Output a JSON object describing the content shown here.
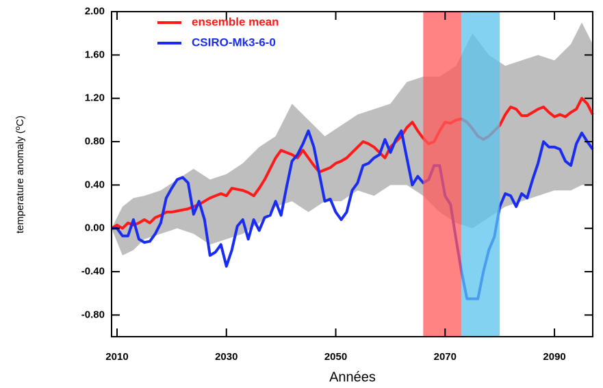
{
  "chart_data": {
    "type": "line",
    "xlabel": "Années",
    "ylabel": "temperature anomaly (ºC)",
    "xlim": [
      2009,
      2097
    ],
    "ylim": [
      -1.0,
      2.0
    ],
    "xticks": [
      2010,
      2030,
      2050,
      2070,
      2090
    ],
    "yticks": [
      {
        "value": 2.0,
        "label": "2.00"
      },
      {
        "value": 1.6,
        "label": "1.60"
      },
      {
        "value": 1.2,
        "label": "1.20"
      },
      {
        "value": 0.8,
        "label": "0.80"
      },
      {
        "value": 0.4,
        "label": "0.40"
      },
      {
        "value": 0,
        "label": "0.00"
      },
      {
        "value": -0.4,
        "label": "-0.40"
      },
      {
        "value": -0.8,
        "label": "-0.80"
      }
    ],
    "legend": "upper left",
    "band": {
      "color": "#bebebe",
      "x": [
        2009,
        2011,
        2013,
        2015,
        2018,
        2021,
        2024,
        2027,
        2030,
        2033,
        2036,
        2039,
        2042,
        2045,
        2048,
        2051,
        2054,
        2057,
        2060,
        2063,
        2066,
        2069,
        2072,
        2075,
        2078,
        2081,
        2084,
        2087,
        2090,
        2093,
        2095,
        2097
      ],
      "upper": [
        0,
        0.2,
        0.28,
        0.3,
        0.35,
        0.45,
        0.55,
        0.45,
        0.5,
        0.6,
        0.75,
        0.85,
        1.15,
        1.0,
        0.85,
        0.95,
        1.05,
        1.1,
        1.15,
        1.35,
        1.4,
        1.4,
        1.5,
        1.8,
        1.6,
        1.5,
        1.55,
        1.6,
        1.55,
        1.7,
        1.9,
        1.7
      ],
      "lower": [
        0,
        -0.25,
        -0.2,
        -0.1,
        -0.05,
        0.0,
        -0.05,
        -0.15,
        -0.1,
        -0.05,
        0.05,
        0.2,
        0.25,
        0.15,
        0.25,
        0.25,
        0.35,
        0.3,
        0.4,
        0.4,
        0.3,
        0.15,
        0.05,
        0.0,
        0.1,
        0.2,
        0.25,
        0.3,
        0.35,
        0.35,
        0.4,
        0.4
      ]
    },
    "spans": [
      {
        "from": 2066,
        "to": 2073,
        "color": "#ff5a5a"
      },
      {
        "from": 2073,
        "to": 2080,
        "color": "#5bc3ee"
      }
    ],
    "x": [
      2009,
      2010,
      2011,
      2012,
      2013,
      2014,
      2015,
      2016,
      2017,
      2018,
      2019,
      2020,
      2021,
      2022,
      2023,
      2024,
      2025,
      2026,
      2027,
      2028,
      2029,
      2030,
      2031,
      2032,
      2033,
      2034,
      2035,
      2036,
      2037,
      2038,
      2039,
      2040,
      2041,
      2042,
      2043,
      2044,
      2045,
      2046,
      2047,
      2048,
      2049,
      2050,
      2051,
      2052,
      2053,
      2054,
      2055,
      2056,
      2057,
      2058,
      2059,
      2060,
      2061,
      2062,
      2063,
      2064,
      2065,
      2066,
      2067,
      2068,
      2069,
      2070,
      2071,
      2072,
      2073,
      2074,
      2075,
      2076,
      2077,
      2078,
      2079,
      2080,
      2081,
      2082,
      2083,
      2084,
      2085,
      2086,
      2087,
      2088,
      2089,
      2090,
      2091,
      2092,
      2093,
      2094,
      2095,
      2096,
      2097
    ],
    "series": [
      {
        "name": "ensemble mean",
        "color": "#ff1a1a",
        "values": [
          0.0,
          0.03,
          0.0,
          0.05,
          0.03,
          0.05,
          0.08,
          0.05,
          0.1,
          0.12,
          0.15,
          0.15,
          0.16,
          0.17,
          0.18,
          0.2,
          0.22,
          0.25,
          0.28,
          0.3,
          0.32,
          0.3,
          0.37,
          0.36,
          0.35,
          0.33,
          0.3,
          0.37,
          0.45,
          0.55,
          0.65,
          0.72,
          0.7,
          0.68,
          0.65,
          0.72,
          0.65,
          0.58,
          0.52,
          0.54,
          0.56,
          0.6,
          0.62,
          0.65,
          0.7,
          0.75,
          0.8,
          0.78,
          0.75,
          0.7,
          0.65,
          0.75,
          0.8,
          0.85,
          0.93,
          0.98,
          0.9,
          0.83,
          0.78,
          0.8,
          0.9,
          0.98,
          0.97,
          1.0,
          1.01,
          0.98,
          0.92,
          0.85,
          0.82,
          0.85,
          0.9,
          0.95,
          1.05,
          1.12,
          1.1,
          1.04,
          1.04,
          1.07,
          1.1,
          1.12,
          1.07,
          1.03,
          1.05,
          1.03,
          1.07,
          1.1,
          1.2,
          1.15,
          1.05
        ]
      },
      {
        "name": "CSIRO-Mk3-6-0",
        "color": "#1a2cf0",
        "values": [
          0.0,
          0.0,
          -0.07,
          -0.07,
          0.08,
          -0.1,
          -0.13,
          -0.12,
          -0.05,
          0.05,
          0.28,
          0.37,
          0.45,
          0.47,
          0.42,
          0.13,
          0.25,
          0.08,
          -0.25,
          -0.22,
          -0.15,
          -0.35,
          -0.2,
          0.02,
          0.08,
          -0.1,
          0.08,
          -0.02,
          0.1,
          0.12,
          0.25,
          0.12,
          0.38,
          0.62,
          0.68,
          0.78,
          0.9,
          0.75,
          0.5,
          0.25,
          0.27,
          0.15,
          0.08,
          0.15,
          0.35,
          0.42,
          0.58,
          0.6,
          0.65,
          0.68,
          0.82,
          0.7,
          0.82,
          0.9,
          0.65,
          0.4,
          0.48,
          0.42,
          0.45,
          0.58,
          0.58,
          0.3,
          0.22,
          -0.1,
          -0.4,
          -0.65,
          -0.65,
          -0.65,
          -0.4,
          -0.2,
          -0.08,
          0.2,
          0.32,
          0.3,
          0.2,
          0.32,
          0.28,
          0.45,
          0.6,
          0.8,
          0.75,
          0.75,
          0.73,
          0.62,
          0.58,
          0.78,
          0.88,
          0.8,
          0.73
        ]
      }
    ]
  }
}
